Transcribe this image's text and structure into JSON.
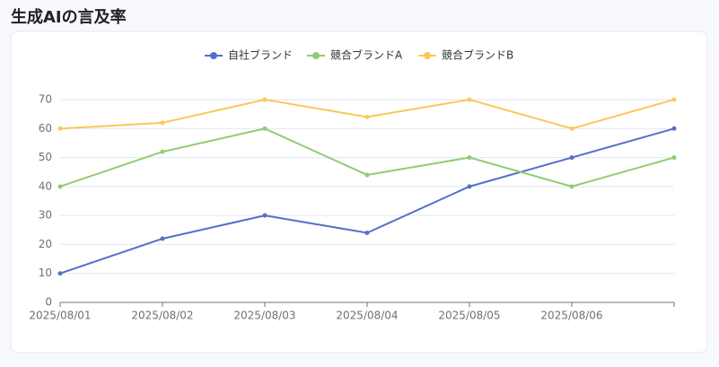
{
  "chart_data": {
    "type": "line",
    "title": "生成AIの言及率",
    "categories": [
      "2025/08/01",
      "2025/08/02",
      "2025/08/03",
      "2025/08/04",
      "2025/08/05",
      "2025/08/06",
      null
    ],
    "series": [
      {
        "name": "自社ブランド",
        "color": "#5470c6",
        "values": [
          10,
          22,
          30,
          24,
          40,
          50,
          60
        ]
      },
      {
        "name": "競合ブランドA",
        "color": "#91cc75",
        "values": [
          40,
          52,
          60,
          44,
          50,
          40,
          50
        ]
      },
      {
        "name": "競合ブランドB",
        "color": "#fac858",
        "values": [
          60,
          62,
          70,
          64,
          70,
          60,
          70
        ]
      }
    ],
    "ylim": [
      0,
      70
    ],
    "yticks": [
      0,
      10,
      20,
      30,
      40,
      50,
      60,
      70
    ],
    "grid": true,
    "legend": "top"
  }
}
